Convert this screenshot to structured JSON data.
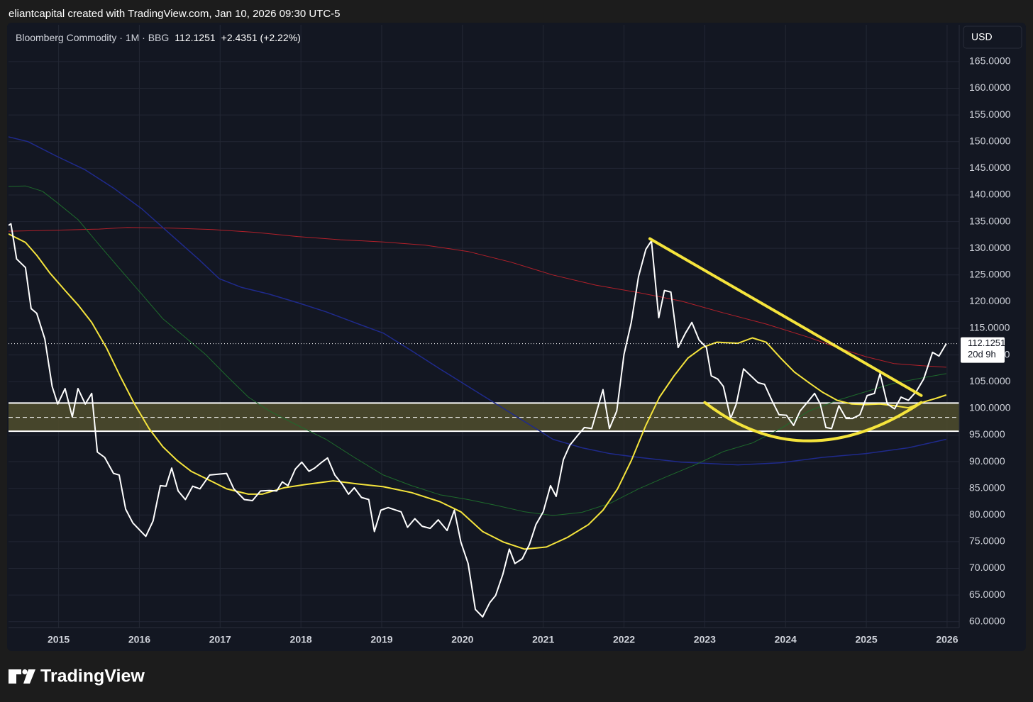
{
  "chart_data": {
    "type": "line",
    "title": "eliantcapital created with TradingView.com, Jan 10, 2026 09:30 UTC-5",
    "change": "+2.4351 (+2.22%)",
    "currency": "USD",
    "countdown": "20d 9h",
    "brand": "TradingView",
    "xlim": [
      2014.38,
      2026.15
    ],
    "xticks": [
      2015,
      2016,
      2017,
      2018,
      2019,
      2020,
      2021,
      2022,
      2023,
      2024,
      2025,
      2026
    ],
    "ylim": [
      58.9,
      171.9
    ],
    "yticks": [
      {
        "value": 60,
        "label": "60.0000"
      },
      {
        "value": 65,
        "label": "65.0000"
      },
      {
        "value": 70,
        "label": "70.0000"
      },
      {
        "value": 75,
        "label": "75.0000"
      },
      {
        "value": 80,
        "label": "80.0000"
      },
      {
        "value": 85,
        "label": "85.0000"
      },
      {
        "value": 90,
        "label": "90.0000"
      },
      {
        "value": 95,
        "label": "95.0000"
      },
      {
        "value": 100,
        "label": "100.0000"
      },
      {
        "value": 105,
        "label": "105.0000"
      },
      {
        "value": 110,
        "label": "110.0000"
      },
      {
        "value": 115,
        "label": "115.0000"
      },
      {
        "value": 120,
        "label": "120.0000"
      },
      {
        "value": 125,
        "label": "125.0000"
      },
      {
        "value": 130,
        "label": "130.0000"
      },
      {
        "value": 135,
        "label": "135.0000"
      },
      {
        "value": 140,
        "label": "140.0000"
      },
      {
        "value": 145,
        "label": "145.0000"
      },
      {
        "value": 150,
        "label": "150.0000"
      },
      {
        "value": 155,
        "label": "155.0000"
      },
      {
        "value": 160,
        "label": "160.0000"
      },
      {
        "value": 165,
        "label": "165.0000"
      }
    ],
    "grid": true,
    "series": [
      {
        "name": "Bloomberg Commodity · 1M · BBG",
        "color": "#ffffff",
        "line_width": 2,
        "x": [
          2014.38,
          2014.41,
          2014.48,
          2014.59,
          2014.66,
          2014.73,
          2014.83,
          2014.92,
          2014.99,
          2015.08,
          2015.17,
          2015.24,
          2015.33,
          2015.41,
          2015.48,
          2015.57,
          2015.68,
          2015.75,
          2015.83,
          2015.92,
          2016.08,
          2016.17,
          2016.26,
          2016.33,
          2016.4,
          2016.48,
          2016.57,
          2016.66,
          2016.75,
          2016.87,
          2017.08,
          2017.17,
          2017.3,
          2017.4,
          2017.5,
          2017.61,
          2017.7,
          2017.77,
          2017.84,
          2017.93,
          2018.01,
          2018.1,
          2018.17,
          2018.25,
          2018.33,
          2018.42,
          2018.51,
          2018.59,
          2018.66,
          2018.75,
          2018.84,
          2018.91,
          2018.99,
          2019.08,
          2019.24,
          2019.32,
          2019.41,
          2019.5,
          2019.6,
          2019.7,
          2019.81,
          2019.9,
          2019.98,
          2020.07,
          2020.16,
          2020.25,
          2020.34,
          2020.41,
          2020.5,
          2020.58,
          2020.65,
          2020.74,
          2020.83,
          2020.91,
          2021.0,
          2021.09,
          2021.16,
          2021.25,
          2021.33,
          2021.42,
          2021.51,
          2021.6,
          2021.74,
          2021.82,
          2021.91,
          2022.0,
          2022.09,
          2022.18,
          2022.27,
          2022.34,
          2022.43,
          2022.5,
          2022.58,
          2022.67,
          2022.76,
          2022.84,
          2022.93,
          2023.02,
          2023.08,
          2023.16,
          2023.23,
          2023.32,
          2023.39,
          2023.48,
          2023.57,
          2023.66,
          2023.74,
          2023.83,
          2023.92,
          2024.01,
          2024.1,
          2024.18,
          2024.29,
          2024.36,
          2024.43,
          2024.5,
          2024.57,
          2024.66,
          2024.75,
          2024.83,
          2024.92,
          2025.01,
          2025.1,
          2025.17,
          2025.26,
          2025.35,
          2025.43,
          2025.52,
          2025.62,
          2025.71,
          2025.82,
          2025.9,
          2025.99
        ],
        "values": [
          134.3,
          134.6,
          128,
          126.4,
          118.7,
          117.8,
          113,
          104.1,
          100.8,
          103.7,
          98.4,
          103.7,
          100.8,
          102.8,
          91.8,
          90.8,
          87.8,
          87.5,
          81.1,
          78.5,
          76,
          78.9,
          85.5,
          85.4,
          88.8,
          84.5,
          82.9,
          85.4,
          84.9,
          87.5,
          87.8,
          84.9,
          82.9,
          82.7,
          84.5,
          84.6,
          84.5,
          86.2,
          85.5,
          88.6,
          89.9,
          88.2,
          88.8,
          89.8,
          90.7,
          87.5,
          85.8,
          83.9,
          85.1,
          83.3,
          82.9,
          76.9,
          80.9,
          81.4,
          80.6,
          77.7,
          79.3,
          77.9,
          77.5,
          79.1,
          77.1,
          80.9,
          74.9,
          70.9,
          62.3,
          60.9,
          63.6,
          64.9,
          68.9,
          73.6,
          70.9,
          71.8,
          74.5,
          78.2,
          80.6,
          85.5,
          83.5,
          90.4,
          93.1,
          94.8,
          96.4,
          96.2,
          103.5,
          96.2,
          99.5,
          110.1,
          116.1,
          124.7,
          129.8,
          131.4,
          117,
          122.1,
          121.8,
          111.4,
          114.1,
          116.1,
          112.8,
          111.4,
          106.1,
          105.5,
          104.1,
          98.1,
          100.8,
          107.4,
          106.1,
          104.8,
          104.5,
          101.5,
          98.8,
          98.7,
          96.8,
          99.5,
          101.5,
          102.8,
          100.8,
          96.4,
          96.2,
          100.5,
          98.1,
          98.1,
          98.8,
          102.4,
          102.8,
          106.5,
          100.8,
          99.9,
          102.1,
          101.5,
          103.2,
          105.5,
          110.5,
          109.8,
          112.1251
        ]
      },
      {
        "color": "#f5e43c",
        "line_width": 2,
        "x": [
          2014.38,
          2014.59,
          2014.73,
          2014.89,
          2015.08,
          2015.24,
          2015.41,
          2015.59,
          2015.76,
          2015.94,
          2016.12,
          2016.29,
          2016.47,
          2016.64,
          2016.91,
          2017.08,
          2017.35,
          2017.52,
          2017.79,
          2018.05,
          2018.4,
          2018.66,
          2019.02,
          2019.37,
          2019.72,
          2019.98,
          2020.25,
          2020.51,
          2020.77,
          2021.04,
          2021.3,
          2021.56,
          2021.74,
          2021.92,
          2022.09,
          2022.27,
          2022.44,
          2022.62,
          2022.79,
          2022.97,
          2023.15,
          2023.41,
          2023.59,
          2023.76,
          2023.94,
          2024.11,
          2024.29,
          2024.46,
          2024.64,
          2024.82,
          2024.99,
          2025.17,
          2025.34,
          2025.52,
          2025.69,
          2025.87,
          2025.99
        ],
        "values": [
          132.7,
          131.1,
          128.7,
          125.4,
          122.1,
          119.4,
          116.1,
          111.4,
          106.1,
          100.8,
          96.2,
          92.8,
          90.2,
          88.2,
          86.2,
          84.9,
          83.9,
          83.9,
          85.1,
          85.7,
          86.4,
          85.9,
          85.3,
          84.2,
          82.5,
          80.6,
          76.9,
          74.9,
          73.6,
          74,
          75.8,
          78.2,
          80.9,
          84.9,
          90.2,
          96.8,
          102.1,
          106.1,
          109.4,
          111.4,
          112.4,
          112.2,
          113.2,
          112.4,
          109.4,
          106.8,
          104.8,
          103,
          101.5,
          100.8,
          100.7,
          100.8,
          100.5,
          100.1,
          101.1,
          101.9,
          102.5
        ]
      },
      {
        "color": "#1e6b2c",
        "line_width": 1,
        "x": [
          2014.38,
          2014.59,
          2014.8,
          2014.97,
          2015.24,
          2015.5,
          2015.76,
          2016.03,
          2016.29,
          2016.56,
          2016.82,
          2017.08,
          2017.35,
          2017.61,
          2017.96,
          2018.31,
          2018.66,
          2019.02,
          2019.37,
          2019.72,
          2020.07,
          2020.42,
          2020.77,
          2021.12,
          2021.48,
          2021.83,
          2022.18,
          2022.53,
          2022.88,
          2023.23,
          2023.59,
          2023.94,
          2024.29,
          2024.64,
          2024.99,
          2025.34,
          2025.69,
          2025.99
        ],
        "values": [
          141.6,
          141.7,
          140.7,
          138.7,
          135.4,
          130.7,
          126.1,
          121.4,
          116.8,
          113.4,
          110.1,
          106.1,
          102.1,
          99.5,
          96.8,
          94.2,
          90.8,
          87.5,
          85.5,
          83.8,
          82.9,
          81.8,
          80.6,
          79.9,
          80.5,
          82.2,
          84.9,
          87.2,
          89.4,
          91.9,
          93.5,
          96.2,
          99.5,
          101.5,
          103.1,
          104.7,
          105.7,
          106.5
        ]
      },
      {
        "color": "#1f2a8c",
        "line_width": 1.5,
        "x": [
          2014.38,
          2014.62,
          2014.97,
          2015.33,
          2015.68,
          2016.03,
          2016.38,
          2016.73,
          2016.99,
          2017.26,
          2017.61,
          2017.96,
          2018.31,
          2018.66,
          2019.02,
          2019.37,
          2019.72,
          2020.07,
          2020.42,
          2020.77,
          2021.12,
          2021.48,
          2021.83,
          2022.18,
          2022.71,
          2023.41,
          2023.94,
          2024.46,
          2024.99,
          2025.52,
          2025.99
        ],
        "values": [
          150.9,
          150,
          147.3,
          144.7,
          141.3,
          137.4,
          132.7,
          128,
          124.3,
          122.7,
          121.4,
          119.8,
          118.1,
          116.1,
          114.1,
          110.8,
          107.4,
          104.1,
          100.8,
          97.5,
          94.2,
          92.6,
          91.5,
          90.8,
          89.9,
          89.4,
          89.8,
          90.8,
          91.5,
          92.6,
          94.2
        ]
      },
      {
        "color": "#b3202a",
        "line_width": 1,
        "x": [
          2014.38,
          2014.97,
          2015.5,
          2015.85,
          2016.38,
          2016.91,
          2017.43,
          2017.96,
          2018.49,
          2019.02,
          2019.54,
          2020.07,
          2020.6,
          2021.12,
          2021.65,
          2022.18,
          2022.71,
          2023.23,
          2023.76,
          2024.29,
          2024.64,
          2024.99,
          2025.34,
          2025.69,
          2025.99
        ],
        "values": [
          133.2,
          133.4,
          133.6,
          133.9,
          133.8,
          133.5,
          133,
          132.2,
          131.6,
          131.2,
          130.6,
          129.4,
          127.4,
          125,
          123.1,
          121.7,
          120.1,
          117.9,
          115.8,
          113.3,
          111.4,
          109.7,
          108.4,
          108,
          107.7
        ]
      }
    ],
    "zone": {
      "ylim": [
        95.7,
        101
      ],
      "mid": 98.3,
      "color": "#4c4a2c"
    },
    "trendline": {
      "x": [
        2022.32,
        2025.68
      ],
      "y": [
        131.8,
        102.4
      ],
      "color": "#f5e43c"
    },
    "arc": {
      "x": [
        2023.0,
        2024.29,
        2025.68
      ],
      "y": [
        101.1,
        93.9,
        101.1
      ],
      "color": "#f5e43c"
    }
  }
}
